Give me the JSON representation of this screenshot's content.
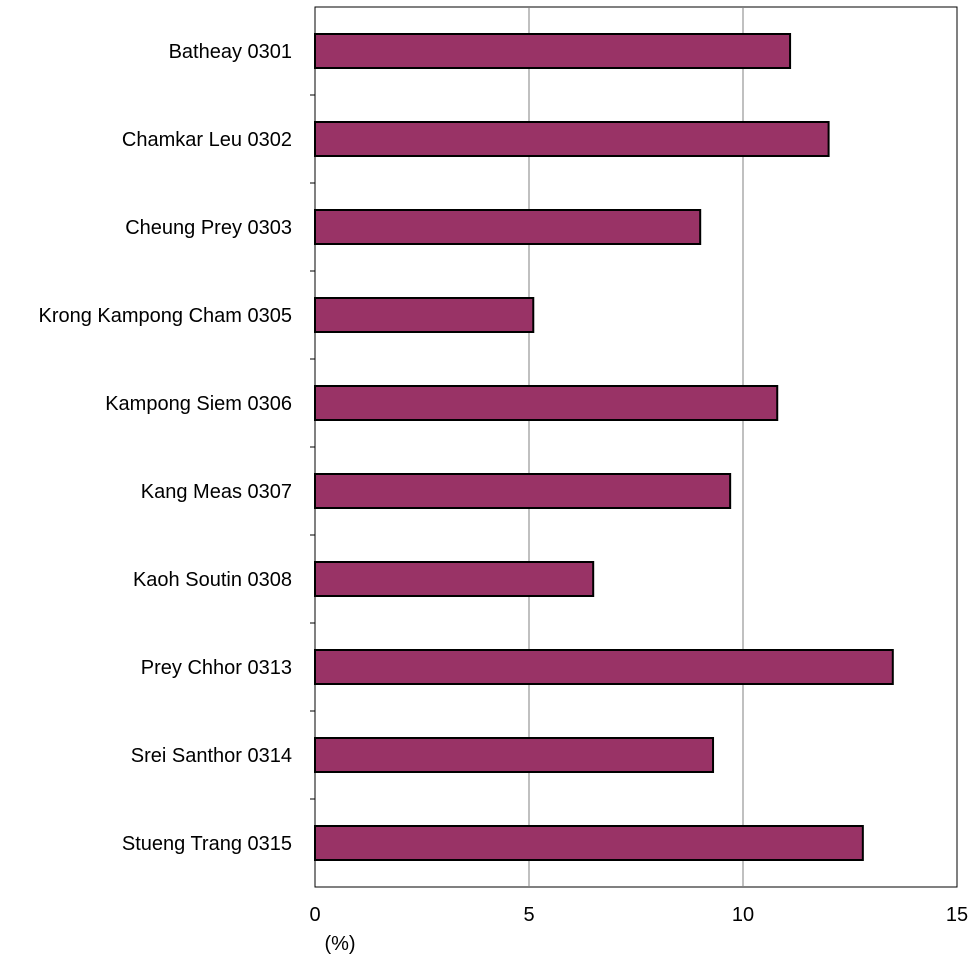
{
  "chart_data": {
    "type": "bar",
    "orientation": "horizontal",
    "categories": [
      "Batheay 0301",
      "Chamkar Leu 0302",
      "Cheung Prey 0303",
      "Krong Kampong Cham 0305",
      "Kampong Siem 0306",
      "Kang Meas 0307",
      "Kaoh Soutin 0308",
      "Prey Chhor 0313",
      "Srei Santhor 0314",
      "Stueng Trang 0315"
    ],
    "values": [
      11.1,
      12.0,
      9.0,
      5.1,
      10.8,
      9.7,
      6.5,
      13.5,
      9.3,
      12.8
    ],
    "xlim": [
      0,
      15
    ],
    "xticks": [
      0,
      5,
      10,
      15
    ],
    "xtick_labels": [
      "0",
      "5",
      "10",
      "15"
    ],
    "xlabel": "(%)",
    "ylabel": "",
    "title": "",
    "grid": "vertical",
    "bar_color": "#993366",
    "bar_edge_color": "#000000"
  }
}
